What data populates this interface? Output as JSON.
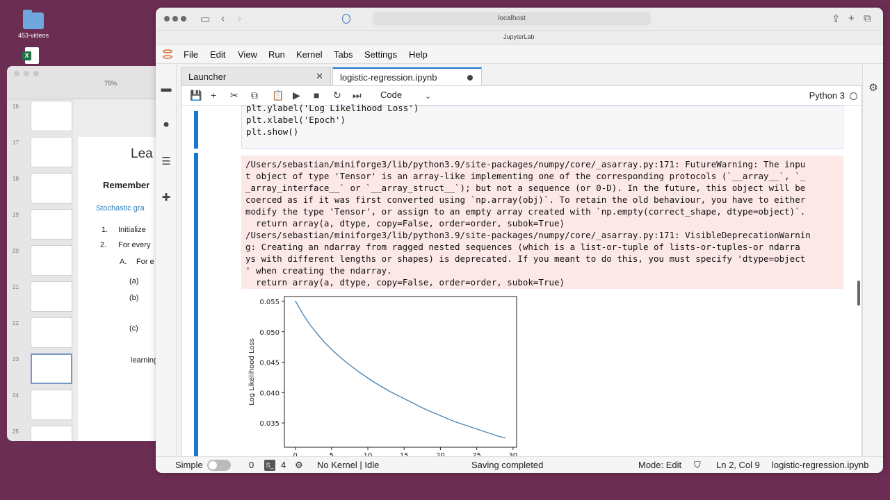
{
  "desktop": {
    "folder_label": "453-videos"
  },
  "keynote": {
    "zoom": "75%",
    "slide_numbers": [
      "16",
      "17",
      "18",
      "19",
      "20",
      "21",
      "22",
      "23",
      "24",
      "25"
    ],
    "slide_title": "Lea",
    "remember": "Remember",
    "stochastic": "Stochastic gra",
    "items": {
      "n1": "1.",
      "init": "Initialize",
      "n2": "2.",
      "for_every": "For every",
      "a": "A.",
      "for_e": "For e",
      "pa": "(a)",
      "pb": "(b)",
      "pc": "(c)",
      "learning": "learning"
    }
  },
  "browser": {
    "url": "localhost",
    "page_title": "JupyterLab"
  },
  "menu": [
    "File",
    "Edit",
    "View",
    "Run",
    "Kernel",
    "Tabs",
    "Settings",
    "Help"
  ],
  "tabs": {
    "launcher": "Launcher",
    "notebook": "logistic-regression.ipynb"
  },
  "toolbar": {
    "cell_type": "Code",
    "kernel": "Python 3"
  },
  "code_lines": [
    "plt.ylabel('Log Likelihood Loss')",
    "plt.xlabel('Epoch')",
    "plt.show()"
  ],
  "output_lines": [
    "/Users/sebastian/miniforge3/lib/python3.9/site-packages/numpy/core/_asarray.py:171: FutureWarning: The inpu",
    "t object of type 'Tensor' is an array-like implementing one of the corresponding protocols (`__array__`, `_",
    "_array_interface__` or `__array_struct__`); but not a sequence (or 0-D). In the future, this object will be",
    "coerced as if it was first converted using `np.array(obj)`. To retain the old behaviour, you have to either",
    "modify the type 'Tensor', or assign to an empty array created with `np.empty(correct_shape, dtype=object)`.",
    "  return array(a, dtype, copy=False, order=order, subok=True)",
    "/Users/sebastian/miniforge3/lib/python3.9/site-packages/numpy/core/_asarray.py:171: VisibleDeprecationWarnin",
    "g: Creating an ndarray from ragged nested sequences (which is a list-or-tuple of lists-or-tuples-or ndarra",
    "ys with different lengths or shapes) is deprecated. If you meant to do this, you must specify 'dtype=object",
    "' when creating the ndarray.",
    "  return array(a, dtype, copy=False, order=order, subok=True)"
  ],
  "chart_data": {
    "type": "line",
    "ylabel": "Log Likelihood Loss",
    "xlabel": "Epoch",
    "xlim": [
      -1.5,
      30.5
    ],
    "ylim": [
      0.031,
      0.0558
    ],
    "xticks": [
      "0",
      "5",
      "10",
      "15",
      "20",
      "25",
      "30"
    ],
    "yticks": [
      "0.035",
      "0.040",
      "0.045",
      "0.050",
      "0.055"
    ],
    "color": "#4a86b8",
    "x": [
      0,
      1,
      2,
      3,
      4,
      5,
      6,
      7,
      8,
      9,
      10,
      11,
      12,
      13,
      14,
      15,
      16,
      17,
      18,
      19,
      20,
      21,
      22,
      23,
      24,
      25,
      26,
      27,
      28,
      29
    ],
    "values": [
      0.0551,
      0.053,
      0.0512,
      0.0497,
      0.0483,
      0.0471,
      0.046,
      0.045,
      0.0441,
      0.0432,
      0.0424,
      0.0416,
      0.0409,
      0.0402,
      0.0396,
      0.039,
      0.0384,
      0.0378,
      0.0372,
      0.0367,
      0.0362,
      0.0357,
      0.0352,
      0.0348,
      0.0344,
      0.034,
      0.0336,
      0.0332,
      0.0328,
      0.0325
    ]
  },
  "status": {
    "mode_label": "Simple",
    "count_a": "0",
    "term_label": "S_",
    "count_b": "4",
    "kernel_status": "No Kernel | Idle",
    "save_status": "Saving completed",
    "edit_mode": "Mode: Edit",
    "cursor": "Ln 2, Col 9",
    "file": "logistic-regression.ipynb"
  }
}
